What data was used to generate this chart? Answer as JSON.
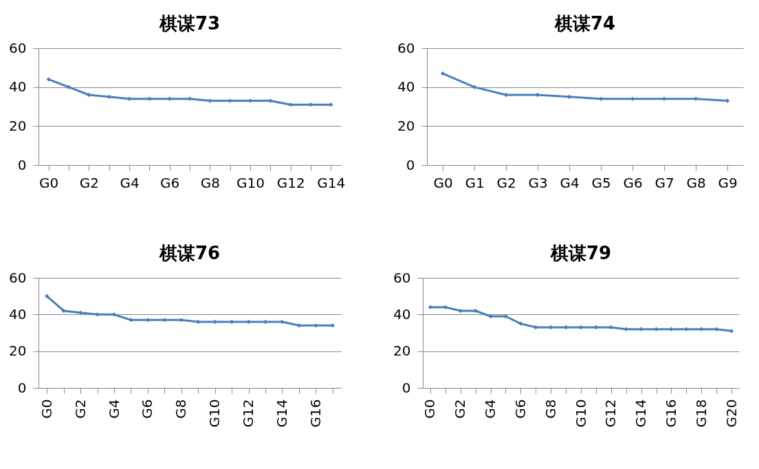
{
  "chart_data": [
    {
      "type": "line",
      "title": "棋谋73",
      "categories": [
        "G0",
        null,
        "G2",
        null,
        "G4",
        null,
        "G6",
        null,
        "G8",
        null,
        "G10",
        null,
        "G12",
        null,
        "G14"
      ],
      "series": [
        {
          "color": "#4a7ebb",
          "values": [
            44,
            40,
            36,
            35,
            34,
            34,
            34,
            34,
            33,
            33,
            33,
            33,
            31,
            31,
            31
          ]
        }
      ],
      "ylim": [
        0,
        60
      ],
      "yticks": [
        0,
        20,
        40,
        60
      ],
      "grid": "y",
      "legend": false,
      "marker": "diamond",
      "line_style": "solid"
    },
    {
      "type": "line",
      "title": "棋谋74",
      "categories": [
        "G0",
        "G1",
        "G2",
        "G3",
        "G4",
        "G5",
        "G6",
        "G7",
        "G8",
        "G9"
      ],
      "series": [
        {
          "color": "#4a7ebb",
          "values": [
            47,
            40,
            36,
            36,
            35,
            34,
            34,
            34,
            34,
            33
          ]
        }
      ],
      "ylim": [
        0,
        60
      ],
      "yticks": [
        0,
        20,
        40,
        60
      ],
      "grid": "y",
      "legend": false,
      "marker": "diamond",
      "line_style": "solid"
    },
    {
      "type": "line",
      "title": "棋谋76",
      "categories": [
        "G0",
        null,
        "G2",
        null,
        "G4",
        null,
        "G6",
        null,
        "G8",
        null,
        "G10",
        null,
        "G12",
        null,
        "G14",
        null,
        "G16",
        null
      ],
      "series": [
        {
          "color": "#4a7ebb",
          "values": [
            50,
            42,
            41,
            40,
            40,
            37,
            37,
            37,
            37,
            36,
            36,
            36,
            36,
            36,
            36,
            34,
            34,
            34
          ]
        }
      ],
      "ylim": [
        0,
        60
      ],
      "yticks": [
        0,
        20,
        40,
        60
      ],
      "grid": "y",
      "legend": false,
      "marker": "diamond",
      "line_style": "solid"
    },
    {
      "type": "line",
      "title": "棋谋79",
      "categories": [
        "G0",
        null,
        "G2",
        null,
        "G4",
        null,
        "G6",
        null,
        "G8",
        null,
        "G10",
        null,
        "G12",
        null,
        "G14",
        null,
        "G16",
        null,
        "G18",
        null,
        "G20"
      ],
      "series": [
        {
          "color": "#4a7ebb",
          "values": [
            44,
            44,
            42,
            42,
            39,
            39,
            35,
            33,
            33,
            33,
            33,
            33,
            33,
            32,
            32,
            32,
            32,
            32,
            32,
            32,
            31
          ]
        }
      ],
      "ylim": [
        0,
        60
      ],
      "yticks": [
        0,
        20,
        40,
        60
      ],
      "grid": "y",
      "legend": false,
      "marker": "diamond",
      "line_style": "solid"
    }
  ]
}
